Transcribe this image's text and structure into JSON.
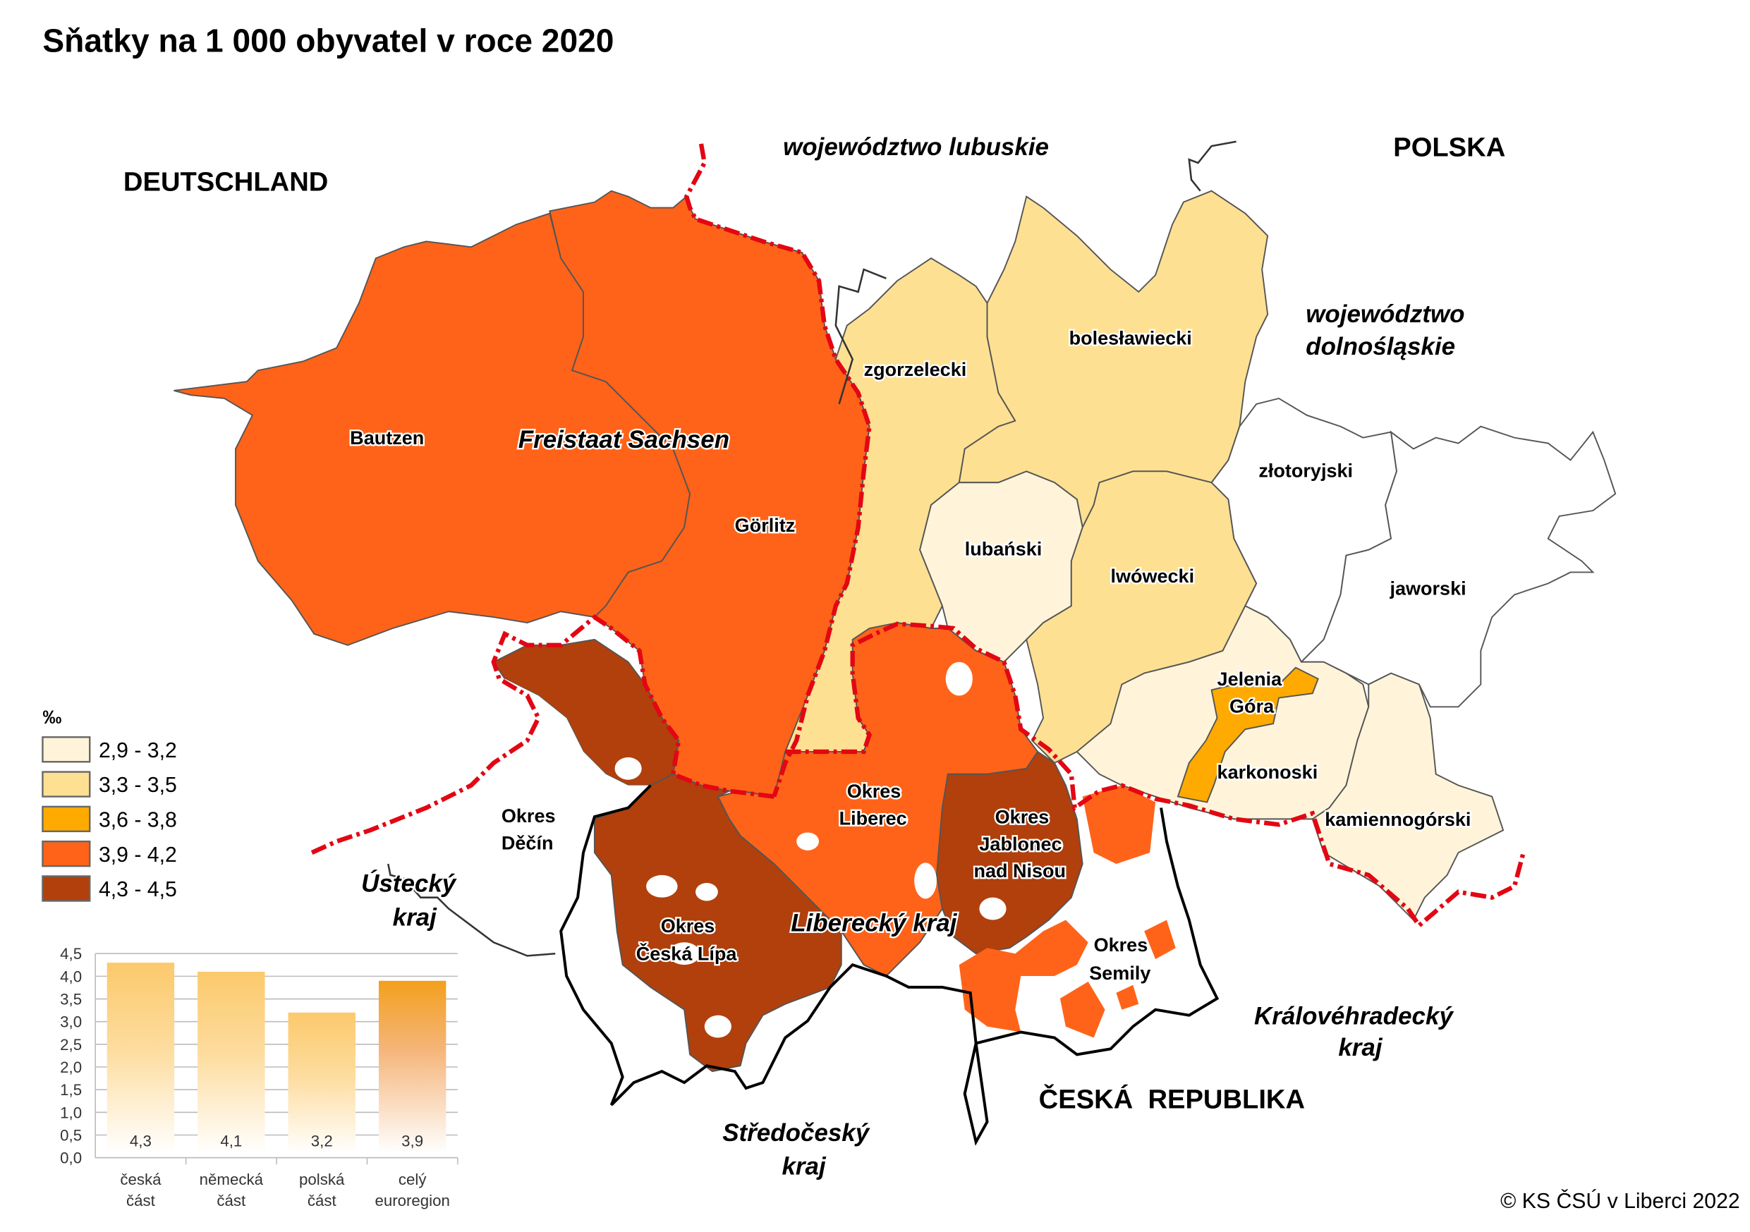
{
  "title": "Sňatky na 1 000 obyvatel v roce 2020",
  "copyright": "© KS ČSÚ v Liberci 2022",
  "colors": {
    "class_1": "#FFF4D9",
    "class_2": "#FEE093",
    "class_3": "#FFAA00",
    "class_4": "#FF6319",
    "class_5": "#B1400D",
    "national_border": "#E30613"
  },
  "legend": {
    "unit": "‰",
    "items": [
      {
        "label": "2,9 - 3,2",
        "color": "#FFF4D9"
      },
      {
        "label": "3,3 - 3,5",
        "color": "#FEE093"
      },
      {
        "label": "3,6 - 3,8",
        "color": "#FFAA00"
      },
      {
        "label": "3,9 - 4,2",
        "color": "#FF6319"
      },
      {
        "label": "4,3 - 4,5",
        "color": "#B1400D"
      }
    ]
  },
  "countries": {
    "de": "DEUTSCHLAND",
    "pl": "POLSKA",
    "cz": "ČESKÁ  REPUBLIKA"
  },
  "regions": {
    "lubuskie": "województwo lubuskie",
    "dolnoslaskie_1": "województwo",
    "dolnoslaskie_2": "dolnośląskie",
    "sachsen": "Freistaat Sachsen",
    "liberecky": "Liberecký kraj",
    "ustecky_1": "Ústecký",
    "ustecky_2": "kraj",
    "stredocesky_1": "Středočeský",
    "stredocesky_2": "kraj",
    "kralovehradecky_1": "Královéhradecký",
    "kralovehradecky_2": "kraj"
  },
  "districts": {
    "bautzen": {
      "label": "Bautzen",
      "class": "3,9 - 4,2"
    },
    "gorlitz": {
      "label": "Görlitz",
      "class": "3,9 - 4,2"
    },
    "zgorzelecki": {
      "label": "zgorzelecki",
      "class": "3,3 - 3,5"
    },
    "boleslawiecki": {
      "label": "bolesławiecki",
      "class": "3,3 - 3,5"
    },
    "lubanski": {
      "label": "lubański",
      "class": "2,9 - 3,2"
    },
    "lwowecki": {
      "label": "lwówecki",
      "class": "3,3 - 3,5"
    },
    "zlotoryjski": {
      "label": "złotoryjski"
    },
    "jaworski": {
      "label": "jaworski"
    },
    "jelenia_gora": {
      "label_1": "Jelenia",
      "label_2": "Góra",
      "class": "3,6 - 3,8"
    },
    "karkonoski": {
      "label": "karkonoski",
      "class": "2,9 - 3,2"
    },
    "kamiennogorski": {
      "label": "kamiennogórski",
      "class": "2,9 - 3,2"
    },
    "liberec": {
      "label_1": "Okres",
      "label_2": "Liberec",
      "class": "3,9 - 4,2"
    },
    "jablonec": {
      "label_1": "Okres",
      "label_2": "Jablonec",
      "label_3": "nad Nisou",
      "class": "4,3 - 4,5"
    },
    "ceska_lipa": {
      "label_1": "Okres",
      "label_2": "Česká Lípa",
      "class": "4,3 - 4,5"
    },
    "decin": {
      "label_1": "Okres",
      "label_2": "Děčín"
    },
    "semily": {
      "label_1": "Okres",
      "label_2": "Semily"
    }
  },
  "chart_data": {
    "type": "bar",
    "categories": [
      "česká část",
      "německá část",
      "polská část",
      "celý euroregion"
    ],
    "category_lines": [
      [
        "česká",
        "část"
      ],
      [
        "německá",
        "část"
      ],
      [
        "polská",
        "část"
      ],
      [
        "celý",
        "euroregion"
      ]
    ],
    "values": [
      4.3,
      4.1,
      3.2,
      3.9
    ],
    "data_labels": [
      "4,3",
      "4,1",
      "3,2",
      "3,9"
    ],
    "yticks": [
      "0,0",
      "0,5",
      "1,0",
      "1,5",
      "2,0",
      "2,5",
      "3,0",
      "3,5",
      "4,0",
      "4,5"
    ],
    "ylim": [
      0,
      4.5
    ],
    "grid": true,
    "xlabel": "",
    "ylabel": ""
  }
}
